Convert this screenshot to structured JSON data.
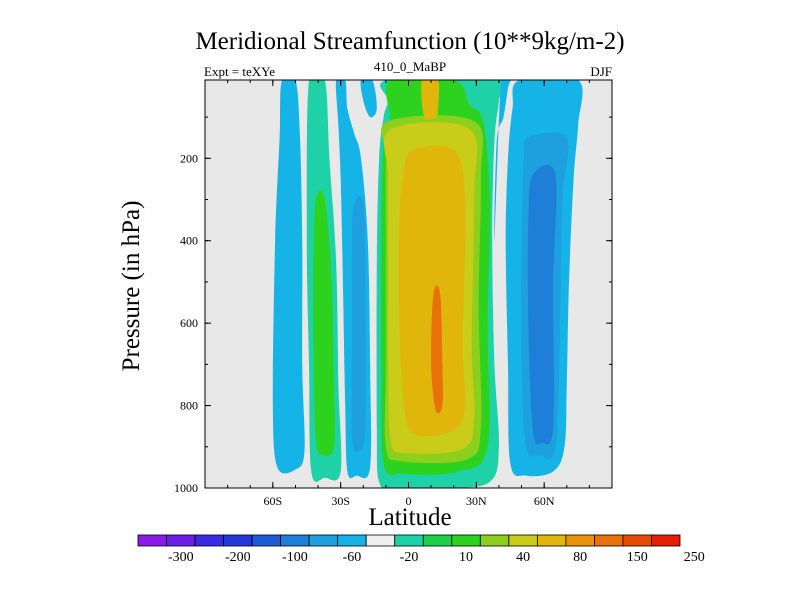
{
  "chart_data": {
    "type": "heatmap",
    "title": "Meridional Streamfunction (10**9kg/m-2)",
    "left_string": "Expt = teXYe",
    "center_string": "410_0_MaBP",
    "right_string": "DJF",
    "xlabel": "Latitude",
    "ylabel": "Pressure (in hPa)",
    "xlim": [
      -90,
      90
    ],
    "ylim": [
      1000,
      10
    ],
    "x_ticks": [
      {
        "value": -60,
        "label": "60S"
      },
      {
        "value": -30,
        "label": "30S"
      },
      {
        "value": 0,
        "label": "0"
      },
      {
        "value": 30,
        "label": "30N"
      },
      {
        "value": 60,
        "label": "60N"
      }
    ],
    "y_ticks": [
      {
        "value": 200,
        "label": "200"
      },
      {
        "value": 400,
        "label": "400"
      },
      {
        "value": 600,
        "label": "600"
      },
      {
        "value": 800,
        "label": "800"
      },
      {
        "value": 1000,
        "label": "1000"
      }
    ],
    "background_color": "#e8e8e8",
    "colorbar": {
      "position": "bottom",
      "colors": [
        "#8a1be6",
        "#6b1fe6",
        "#3a2ae6",
        "#2238dd",
        "#1f5ad6",
        "#1e7fd8",
        "#1e9fde",
        "#16b4e6",
        "#eeeeee",
        "#1fd1a6",
        "#1fcf4b",
        "#2dd21e",
        "#8ccf1c",
        "#c9cc18",
        "#e0b50c",
        "#e8930a",
        "#e87208",
        "#e64c06",
        "#e61e06"
      ],
      "labels": [
        "-300",
        "-200",
        "-100",
        "-60",
        "-20",
        "10",
        "40",
        "80",
        "150",
        "250"
      ]
    },
    "regions": [
      {
        "level": "-20",
        "color": "#16b4e6",
        "outline": [
          [
            -56,
            10
          ],
          [
            -50,
            10
          ],
          [
            -48,
            150
          ],
          [
            -47,
            400
          ],
          [
            -47,
            700
          ],
          [
            -46,
            910
          ],
          [
            -50,
            955
          ],
          [
            -58,
            950
          ],
          [
            -60,
            800
          ],
          [
            -59,
            400
          ],
          [
            -57,
            150
          ]
        ]
      },
      {
        "level": "10",
        "color": "#1fd1a6",
        "outline": [
          [
            -44,
            10
          ],
          [
            -37,
            10
          ],
          [
            -35,
            200
          ],
          [
            -32,
            450
          ],
          [
            -31,
            750
          ],
          [
            -30,
            960
          ],
          [
            -37,
            975
          ],
          [
            -43,
            960
          ],
          [
            -44,
            700
          ],
          [
            -45,
            400
          ]
        ]
      },
      {
        "level": "40",
        "color": "#2dd21e",
        "outline": [
          [
            -41,
            300
          ],
          [
            -37,
            300
          ],
          [
            -34,
            500
          ],
          [
            -33,
            750
          ],
          [
            -33,
            900
          ],
          [
            -38,
            920
          ],
          [
            -41,
            880
          ],
          [
            -42,
            650
          ],
          [
            -42,
            450
          ]
        ]
      },
      {
        "level": "-20",
        "color": "#16b4e6",
        "outline": [
          [
            -32,
            10
          ],
          [
            -28,
            10
          ],
          [
            -27,
            80
          ],
          [
            -24,
            140
          ],
          [
            -21,
            200
          ],
          [
            -18,
            400
          ],
          [
            -17,
            700
          ],
          [
            -17,
            950
          ],
          [
            -23,
            970
          ],
          [
            -27,
            960
          ],
          [
            -28,
            800
          ],
          [
            -29,
            500
          ],
          [
            -30,
            250
          ],
          [
            -31,
            120
          ]
        ]
      },
      {
        "level": "-60",
        "color": "#1e9fde",
        "outline": [
          [
            -24,
            310
          ],
          [
            -20,
            310
          ],
          [
            -19,
            500
          ],
          [
            -19,
            850
          ],
          [
            -22,
            910
          ],
          [
            -25,
            870
          ],
          [
            -25,
            600
          ],
          [
            -25,
            400
          ]
        ]
      },
      {
        "level": "-20",
        "color": "#16b4e6",
        "outline": [
          [
            -21,
            10
          ],
          [
            -16,
            10
          ],
          [
            -14,
            80
          ],
          [
            -17,
            100
          ],
          [
            -20,
            60
          ]
        ]
      },
      {
        "level": "10",
        "color": "#1fd1a6",
        "outline": [
          [
            -9,
            10
          ],
          [
            40,
            10
          ],
          [
            40,
            60
          ],
          [
            38,
            160
          ],
          [
            37,
            400
          ],
          [
            38,
            700
          ],
          [
            40,
            900
          ],
          [
            36,
            985
          ],
          [
            18,
            1000
          ],
          [
            -6,
            1000
          ],
          [
            -13,
            985
          ],
          [
            -14,
            850
          ],
          [
            -14,
            450
          ],
          [
            -13,
            200
          ],
          [
            -11,
            100
          ],
          [
            -9,
            60
          ]
        ]
      },
      {
        "level": "40",
        "color": "#2dd21e",
        "outline": [
          [
            -8,
            10
          ],
          [
            20,
            10
          ],
          [
            27,
            70
          ],
          [
            33,
            110
          ],
          [
            36,
            300
          ],
          [
            35,
            600
          ],
          [
            35,
            900
          ],
          [
            22,
            960
          ],
          [
            -2,
            965
          ],
          [
            -11,
            940
          ],
          [
            -12,
            700
          ],
          [
            -12,
            350
          ],
          [
            -11,
            170
          ],
          [
            -8,
            110
          ]
        ]
      },
      {
        "level": "80",
        "color": "#8ccf1c",
        "outline": [
          [
            -9,
            110
          ],
          [
            29,
            110
          ],
          [
            32,
            250
          ],
          [
            31,
            550
          ],
          [
            32,
            850
          ],
          [
            26,
            930
          ],
          [
            -3,
            935
          ],
          [
            -10,
            900
          ],
          [
            -10,
            700
          ],
          [
            -10,
            400
          ],
          [
            -10,
            200
          ]
        ]
      },
      {
        "level": "150",
        "color": "#c9cc18",
        "outline": [
          [
            -8,
            130
          ],
          [
            27,
            130
          ],
          [
            29,
            300
          ],
          [
            28,
            650
          ],
          [
            29,
            830
          ],
          [
            24,
            905
          ],
          [
            -2,
            915
          ],
          [
            -8,
            880
          ],
          [
            -9,
            700
          ],
          [
            -9,
            500
          ],
          [
            -9,
            250
          ]
        ]
      },
      {
        "level": "150",
        "color": "#e0b50c",
        "outline": [
          [
            6,
            10
          ],
          [
            13,
            10
          ],
          [
            13,
            80
          ],
          [
            12,
            100
          ],
          [
            7,
            100
          ]
        ]
      },
      {
        "level": "150",
        "color": "#e0b50c",
        "outline": [
          [
            2,
            180
          ],
          [
            20,
            180
          ],
          [
            25,
            300
          ],
          [
            24,
            650
          ],
          [
            25,
            800
          ],
          [
            20,
            860
          ],
          [
            3,
            870
          ],
          [
            -2,
            800
          ],
          [
            -4,
            600
          ],
          [
            -4,
            350
          ],
          [
            -2,
            230
          ]
        ]
      },
      {
        "level": "250",
        "color": "#e87208",
        "outline": [
          [
            11,
            530
          ],
          [
            14,
            530
          ],
          [
            15,
            700
          ],
          [
            15,
            800
          ],
          [
            12,
            810
          ],
          [
            10,
            700
          ]
        ]
      },
      {
        "level": "-20",
        "color": "#16b4e6",
        "outline": [
          [
            41,
            10
          ],
          [
            45,
            10
          ],
          [
            44,
            30
          ],
          [
            42,
            100
          ],
          [
            39,
            160
          ],
          [
            38,
            400
          ]
        ]
      },
      {
        "level": "-20",
        "color": "#16b4e6",
        "outline": [
          [
            49,
            10
          ],
          [
            75,
            10
          ],
          [
            75,
            120
          ],
          [
            73,
            250
          ],
          [
            71,
            500
          ],
          [
            70,
            750
          ],
          [
            69,
            900
          ],
          [
            64,
            960
          ],
          [
            52,
            970
          ],
          [
            45,
            940
          ],
          [
            44,
            700
          ],
          [
            43,
            400
          ],
          [
            44,
            200
          ],
          [
            46,
            80
          ]
        ]
      },
      {
        "level": "-60",
        "color": "#1e9fde",
        "outline": [
          [
            53,
            150
          ],
          [
            70,
            150
          ],
          [
            68,
            300
          ],
          [
            67,
            600
          ],
          [
            65,
            900
          ],
          [
            58,
            920
          ],
          [
            52,
            900
          ],
          [
            50,
            700
          ],
          [
            50,
            400
          ],
          [
            51,
            200
          ]
        ]
      },
      {
        "level": "-100",
        "color": "#1e7fd8",
        "outline": [
          [
            55,
            240
          ],
          [
            65,
            240
          ],
          [
            64,
            500
          ],
          [
            64,
            850
          ],
          [
            59,
            890
          ],
          [
            55,
            860
          ],
          [
            53,
            600
          ],
          [
            53,
            350
          ]
        ]
      }
    ]
  }
}
